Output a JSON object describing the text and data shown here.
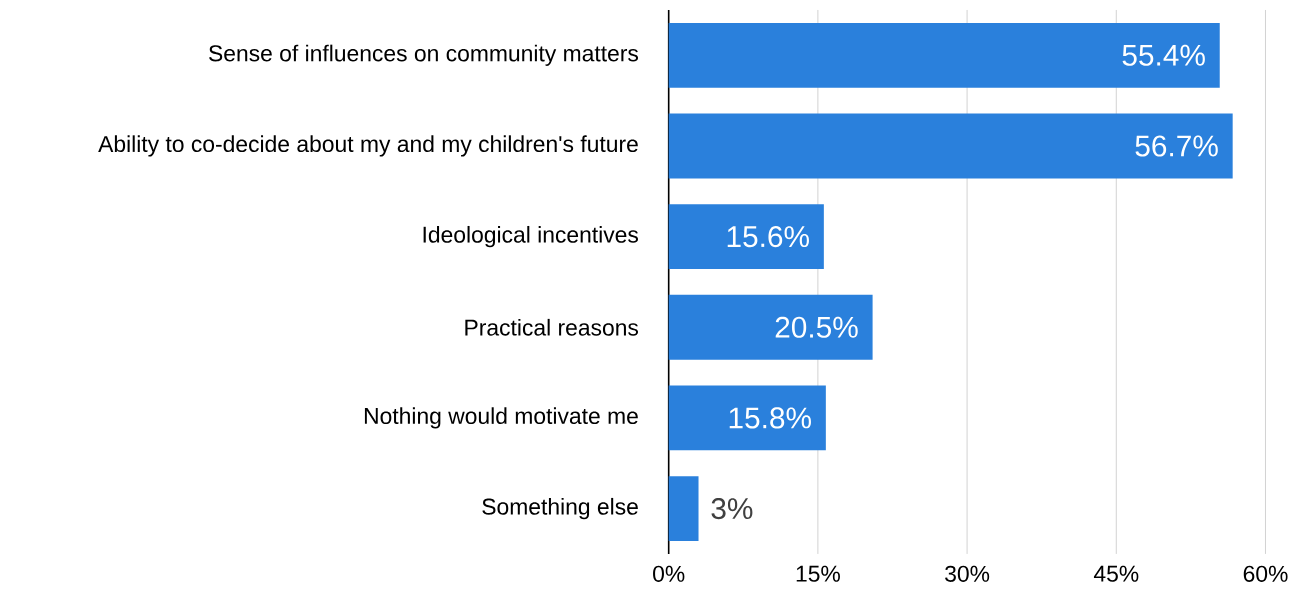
{
  "chart_data": {
    "type": "bar",
    "orientation": "horizontal",
    "categories": [
      "Sense of influences on community matters",
      "Ability to co-decide about my and my children's future",
      "Ideological incentives",
      "Practical reasons",
      "Nothing would motivate me",
      "Something else"
    ],
    "values": [
      55.4,
      56.7,
      15.6,
      20.5,
      15.8,
      3
    ],
    "value_labels": [
      "55.4%",
      "56.7%",
      "15.6%",
      "20.5%",
      "15.8%",
      "3%"
    ],
    "color": "#2a80dc",
    "xlim": [
      0,
      60
    ],
    "xticks": [
      {
        "value": 0,
        "label": "0%"
      },
      {
        "value": 15,
        "label": "15%"
      },
      {
        "value": 30,
        "label": "30%"
      },
      {
        "value": 45,
        "label": "45%"
      },
      {
        "value": 60,
        "label": "60%"
      }
    ],
    "grid": "x"
  }
}
